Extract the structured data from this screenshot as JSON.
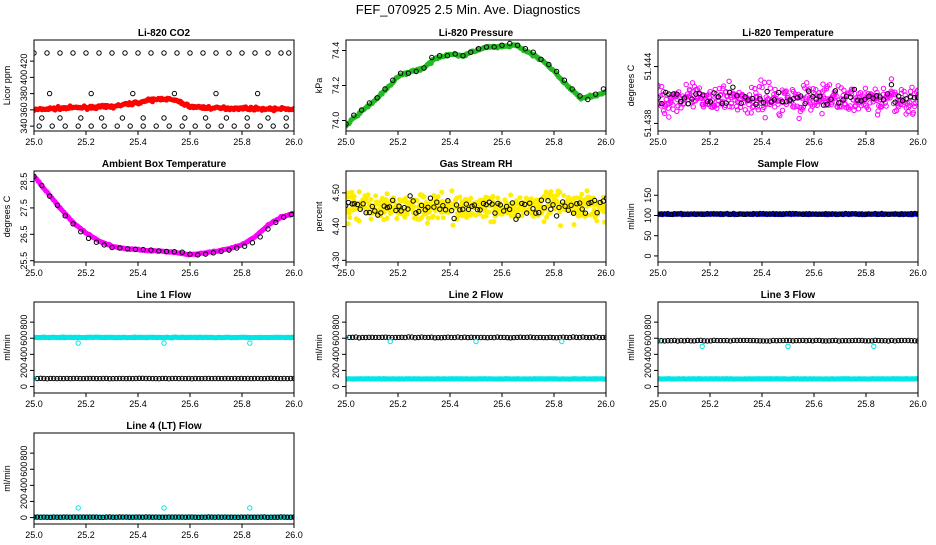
{
  "page_title": "FEF_070925  2.5 Min. Ave. Diagnostics",
  "chart_data": [
    {
      "id": "co2",
      "type": "scatter",
      "title": "Li-820 CO2",
      "ylabel": "Licor ppm",
      "xlim": [
        25.0,
        26.0
      ],
      "xticks": [
        25.0,
        25.2,
        25.4,
        25.6,
        25.8,
        26.0
      ],
      "xtick_labels": [
        "25.0",
        "25.2",
        "25.4",
        "25.6",
        "25.8",
        "26.0"
      ],
      "ylim": [
        334,
        446
      ],
      "yticks": [
        340,
        360,
        380,
        400,
        420
      ],
      "ytick_labels": [
        "340",
        "360",
        "380",
        "400",
        "420"
      ],
      "series": [
        {
          "name": "main",
          "color": "#ff0000",
          "marker": "filled",
          "style": "noisy",
          "x": [
            25.0,
            25.1,
            25.2,
            25.3,
            25.4,
            25.45,
            25.5,
            25.55,
            25.6,
            25.7,
            25.8,
            25.9,
            26.0
          ],
          "y": [
            360,
            362,
            363,
            364,
            369,
            372,
            374,
            371,
            364,
            362,
            362,
            361,
            361
          ],
          "noise": 3
        },
        {
          "name": "avg",
          "color": "#000000",
          "marker": "open",
          "style": "points",
          "x": [
            25.02,
            25.07,
            25.12,
            25.17,
            25.22,
            25.27,
            25.32,
            25.37,
            25.42,
            25.47,
            25.52,
            25.57,
            25.62,
            25.67,
            25.72,
            25.77,
            25.82,
            25.87,
            25.92,
            25.97,
            25.0,
            25.05,
            25.1,
            25.15,
            25.2,
            25.25,
            25.3,
            25.35,
            25.4,
            25.45,
            25.5,
            25.55,
            25.6,
            25.65,
            25.7,
            25.75,
            25.8,
            25.85,
            25.9,
            25.95,
            25.98,
            25.03,
            25.1,
            25.18,
            25.26,
            25.34,
            25.42,
            25.5,
            25.58,
            25.66,
            25.74,
            25.82,
            25.9,
            25.97,
            25.06,
            25.22,
            25.38,
            25.54,
            25.7,
            25.86
          ],
          "y": [
            340,
            340,
            340,
            340,
            340,
            340,
            340,
            340,
            340,
            340,
            340,
            340,
            340,
            340,
            340,
            340,
            340,
            340,
            340,
            340,
            430,
            430,
            430,
            430,
            430,
            430,
            430,
            430,
            430,
            430,
            430,
            430,
            430,
            430,
            430,
            430,
            430,
            430,
            430,
            430,
            430,
            350,
            350,
            350,
            350,
            350,
            350,
            350,
            350,
            350,
            350,
            350,
            350,
            350,
            380,
            380,
            380,
            380,
            380,
            380
          ]
        }
      ]
    },
    {
      "id": "press",
      "type": "scatter",
      "title": "Li-820 Pressure",
      "ylabel": "kPa",
      "xlim": [
        25.0,
        26.0
      ],
      "xticks": [
        25.0,
        25.2,
        25.4,
        25.6,
        25.8,
        26.0
      ],
      "xtick_labels": [
        "25.0",
        "25.2",
        "25.4",
        "25.6",
        "25.8",
        "26.0"
      ],
      "ylim": [
        73.94,
        74.46
      ],
      "yticks": [
        74.0,
        74.2,
        74.4
      ],
      "ytick_labels": [
        "74.0",
        "74.2",
        "74.4"
      ],
      "series": [
        {
          "name": "main",
          "color": "#22bb22",
          "marker": "filled",
          "style": "noisy",
          "x": [
            25.0,
            25.05,
            25.1,
            25.15,
            25.2,
            25.25,
            25.3,
            25.35,
            25.4,
            25.45,
            25.5,
            25.55,
            25.6,
            25.65,
            25.7,
            25.75,
            25.8,
            25.85,
            25.9,
            25.95,
            26.0
          ],
          "y": [
            73.97,
            74.04,
            74.1,
            74.17,
            74.25,
            74.28,
            74.3,
            74.36,
            74.38,
            74.37,
            74.4,
            74.42,
            74.42,
            74.43,
            74.39,
            74.35,
            74.28,
            74.2,
            74.13,
            74.14,
            74.16
          ],
          "noise": 0.012
        },
        {
          "name": "avg",
          "color": "#000000",
          "marker": "open",
          "style": "points",
          "x": [
            25.0,
            25.03,
            25.06,
            25.09,
            25.12,
            25.15,
            25.18,
            25.21,
            25.24,
            25.27,
            25.3,
            25.33,
            25.36,
            25.39,
            25.42,
            25.45,
            25.48,
            25.51,
            25.54,
            25.57,
            25.6,
            25.63,
            25.66,
            25.69,
            25.72,
            25.75,
            25.78,
            25.81,
            25.84,
            25.87,
            25.9,
            25.93,
            25.96,
            25.99
          ],
          "y": [
            73.98,
            74.03,
            74.06,
            74.1,
            74.13,
            74.18,
            74.23,
            74.27,
            74.27,
            74.28,
            74.3,
            74.36,
            74.37,
            74.37,
            74.38,
            74.37,
            74.39,
            74.41,
            74.42,
            74.42,
            74.43,
            74.44,
            74.43,
            74.41,
            74.39,
            74.35,
            74.32,
            74.28,
            74.23,
            74.18,
            74.14,
            74.12,
            74.15,
            74.18
          ]
        }
      ]
    },
    {
      "id": "ltemp",
      "type": "scatter",
      "title": "Li-820 Temperature",
      "ylabel": "degrees C",
      "xlim": [
        25.0,
        26.0
      ],
      "xticks": [
        25.0,
        25.2,
        25.4,
        25.6,
        25.8,
        26.0
      ],
      "xtick_labels": [
        "25.0",
        "25.2",
        "25.4",
        "25.6",
        "25.8",
        "26.0"
      ],
      "ylim": [
        51.4372,
        51.4468
      ],
      "yticks": [
        51.438,
        51.444
      ],
      "ytick_labels": [
        "51.438",
        "51.444"
      ],
      "series": [
        {
          "name": "main",
          "color": "#ff00ff",
          "marker": "open",
          "style": "scatter",
          "count": 420,
          "center": 51.4406,
          "spread": 0.0026,
          "ymin": 51.4374,
          "ymax": 51.4465
        },
        {
          "name": "avg",
          "color": "#000000",
          "marker": "open",
          "style": "scatter",
          "count": 70,
          "center": 51.4406,
          "spread": 0.0016,
          "ymin": 51.4376,
          "ymax": 51.4445
        }
      ]
    },
    {
      "id": "abox",
      "type": "scatter",
      "title": "Ambient Box Temperature",
      "ylabel": "degrees C",
      "xlim": [
        25.0,
        26.0
      ],
      "xticks": [
        25.0,
        25.2,
        25.4,
        25.6,
        25.8,
        26.0
      ],
      "xtick_labels": [
        "25.0",
        "25.2",
        "25.4",
        "25.6",
        "25.8",
        "26.0"
      ],
      "ylim": [
        25.45,
        28.9
      ],
      "yticks": [
        25.5,
        26.5,
        27.5,
        28.5
      ],
      "ytick_labels": [
        "25.5",
        "26.5",
        "27.5",
        "28.5"
      ],
      "series": [
        {
          "name": "main",
          "color": "#ff00ff",
          "marker": "filled",
          "style": "noisy",
          "x": [
            25.0,
            25.05,
            25.1,
            25.15,
            25.2,
            25.25,
            25.3,
            25.35,
            25.4,
            25.45,
            25.5,
            25.55,
            25.6,
            25.65,
            25.7,
            25.75,
            25.8,
            25.85,
            25.9,
            25.95,
            26.0
          ],
          "y": [
            28.7,
            28.1,
            27.5,
            26.95,
            26.55,
            26.25,
            26.05,
            25.95,
            25.92,
            25.88,
            25.85,
            25.8,
            25.72,
            25.78,
            25.85,
            25.95,
            26.1,
            26.4,
            26.85,
            27.15,
            27.3
          ],
          "noise": 0.04
        },
        {
          "name": "avg",
          "color": "#000000",
          "marker": "open",
          "style": "points",
          "x": [
            25.0,
            25.03,
            25.06,
            25.09,
            25.12,
            25.15,
            25.18,
            25.21,
            25.24,
            25.27,
            25.3,
            25.33,
            25.36,
            25.39,
            25.42,
            25.45,
            25.48,
            25.51,
            25.54,
            25.57,
            25.6,
            25.63,
            25.66,
            25.69,
            25.72,
            25.75,
            25.78,
            25.81,
            25.84,
            25.87,
            25.9,
            25.93,
            25.96,
            25.99
          ],
          "y": [
            28.7,
            28.35,
            27.95,
            27.6,
            27.2,
            26.9,
            26.6,
            26.35,
            26.2,
            26.1,
            26.0,
            25.98,
            25.95,
            25.93,
            25.92,
            25.9,
            25.87,
            25.85,
            25.84,
            25.82,
            25.75,
            25.72,
            25.75,
            25.8,
            25.85,
            25.9,
            25.98,
            26.05,
            26.18,
            26.4,
            26.7,
            26.95,
            27.15,
            27.25
          ]
        }
      ]
    },
    {
      "id": "rh",
      "type": "scatter",
      "title": "Gas Stream RH",
      "ylabel": "percent",
      "xlim": [
        25.0,
        26.0
      ],
      "xticks": [
        25.0,
        25.2,
        25.4,
        25.6,
        25.8,
        26.0
      ],
      "xtick_labels": [
        "25.0",
        "25.2",
        "25.4",
        "25.6",
        "25.8",
        "26.0"
      ],
      "ylim": [
        4.295,
        4.565
      ],
      "yticks": [
        4.3,
        4.4,
        4.5
      ],
      "ytick_labels": [
        "4.30",
        "4.40",
        "4.50"
      ],
      "series": [
        {
          "name": "main",
          "color": "#ffee00",
          "marker": "filled",
          "style": "scatter",
          "count": 480,
          "center": 4.46,
          "spread": 0.07,
          "ymin": 4.36,
          "ymax": 4.56
        },
        {
          "name": "avg",
          "color": "#000000",
          "marker": "open",
          "style": "scatter",
          "count": 90,
          "center": 4.46,
          "spread": 0.05,
          "ymin": 4.33,
          "ymax": 4.54
        }
      ]
    },
    {
      "id": "sflow",
      "type": "scatter",
      "title": "Sample Flow",
      "ylabel": "ml/min",
      "xlim": [
        25.0,
        26.0
      ],
      "xticks": [
        25.0,
        25.2,
        25.4,
        25.6,
        25.8,
        26.0
      ],
      "xtick_labels": [
        "25.0",
        "25.2",
        "25.4",
        "25.6",
        "25.8",
        "26.0"
      ],
      "ylim": [
        -15,
        210
      ],
      "yticks": [
        0,
        50,
        100,
        150
      ],
      "ytick_labels": [
        "0",
        "50",
        "100",
        "150"
      ],
      "series": [
        {
          "name": "main",
          "color": "#0000cc",
          "marker": "filled",
          "style": "flat",
          "level": 103,
          "noise": 2,
          "count": 300
        },
        {
          "name": "avg",
          "color": "#000000",
          "marker": "open",
          "style": "flat",
          "level": 104,
          "noise": 2,
          "count": 80
        }
      ]
    },
    {
      "id": "line1",
      "type": "scatter",
      "title": "Line 1 Flow",
      "ylabel": "ml/min",
      "xlim": [
        25.0,
        26.0
      ],
      "xticks": [
        25.0,
        25.2,
        25.4,
        25.6,
        25.8,
        26.0
      ],
      "xtick_labels": [
        "25.0",
        "25.2",
        "25.4",
        "25.6",
        "25.8",
        "26.0"
      ],
      "ylim": [
        -80,
        1050
      ],
      "yticks": [
        0,
        200,
        400,
        600,
        800
      ],
      "ytick_labels": [
        "0",
        "200",
        "400",
        "600",
        "800"
      ],
      "series": [
        {
          "name": "main",
          "color": "#00e5e5",
          "marker": "filled",
          "style": "flat",
          "level": 610,
          "noise": 8,
          "count": 300
        },
        {
          "name": "avg",
          "color": "#000000",
          "marker": "open",
          "style": "flat",
          "level": 100,
          "noise": 4,
          "count": 80
        },
        {
          "name": "low",
          "color": "#00e5e5",
          "marker": "open",
          "style": "points",
          "x": [
            25.0,
            25.17,
            25.5,
            25.83
          ],
          "y": [
            100,
            540,
            540,
            540
          ]
        }
      ]
    },
    {
      "id": "line2",
      "type": "scatter",
      "title": "Line 2 Flow",
      "ylabel": "ml/min",
      "xlim": [
        25.0,
        26.0
      ],
      "xticks": [
        25.0,
        25.2,
        25.4,
        25.6,
        25.8,
        26.0
      ],
      "xtick_labels": [
        "25.0",
        "25.2",
        "25.4",
        "25.6",
        "25.8",
        "26.0"
      ],
      "ylim": [
        -80,
        1050
      ],
      "yticks": [
        0,
        200,
        400,
        600,
        800
      ],
      "ytick_labels": [
        "0",
        "200",
        "400",
        "600",
        "800"
      ],
      "series": [
        {
          "name": "main",
          "color": "#00e5e5",
          "marker": "filled",
          "style": "flat",
          "level": 95,
          "noise": 5,
          "count": 300
        },
        {
          "name": "avg",
          "color": "#000000",
          "marker": "open",
          "style": "flat",
          "level": 610,
          "noise": 8,
          "count": 80
        },
        {
          "name": "low",
          "color": "#00e5e5",
          "marker": "open",
          "style": "points",
          "x": [
            25.0,
            25.17,
            25.5,
            25.83
          ],
          "y": [
            610,
            560,
            560,
            560
          ]
        }
      ]
    },
    {
      "id": "line3",
      "type": "scatter",
      "title": "Line 3 Flow",
      "ylabel": "ml/min",
      "xlim": [
        25.0,
        26.0
      ],
      "xticks": [
        25.0,
        25.2,
        25.4,
        25.6,
        25.8,
        26.0
      ],
      "xtick_labels": [
        "25.0",
        "25.2",
        "25.4",
        "25.6",
        "25.8",
        "26.0"
      ],
      "ylim": [
        -80,
        1050
      ],
      "yticks": [
        0,
        200,
        400,
        600,
        800
      ],
      "ytick_labels": [
        "0",
        "200",
        "400",
        "600",
        "800"
      ],
      "series": [
        {
          "name": "main",
          "color": "#00e5e5",
          "marker": "filled",
          "style": "flat",
          "level": 95,
          "noise": 5,
          "count": 300
        },
        {
          "name": "avg",
          "color": "#000000",
          "marker": "open",
          "style": "flat",
          "level": 570,
          "noise": 8,
          "count": 80
        },
        {
          "name": "low",
          "color": "#00e5e5",
          "marker": "open",
          "style": "points",
          "x": [
            25.0,
            25.17,
            25.5,
            25.83
          ],
          "y": [
            560,
            500,
            500,
            500
          ]
        }
      ]
    },
    {
      "id": "line4",
      "type": "scatter",
      "title": "Line 4 (LT) Flow",
      "ylabel": "ml/min",
      "xlim": [
        25.0,
        26.0
      ],
      "xticks": [
        25.0,
        25.2,
        25.4,
        25.6,
        25.8,
        26.0
      ],
      "xtick_labels": [
        "25.0",
        "25.2",
        "25.4",
        "25.6",
        "25.8",
        "26.0"
      ],
      "ylim": [
        -80,
        1050
      ],
      "yticks": [
        0,
        200,
        400,
        600,
        800
      ],
      "ytick_labels": [
        "0",
        "200",
        "400",
        "600",
        "800"
      ],
      "series": [
        {
          "name": "main",
          "color": "#00e5e5",
          "marker": "filled",
          "style": "flat",
          "level": 5,
          "noise": 3,
          "count": 300
        },
        {
          "name": "avg",
          "color": "#000000",
          "marker": "open",
          "style": "flat",
          "level": 5,
          "noise": 3,
          "count": 80
        },
        {
          "name": "low",
          "color": "#00e5e5",
          "marker": "open",
          "style": "points",
          "x": [
            25.17,
            25.5,
            25.83
          ],
          "y": [
            120,
            120,
            120
          ]
        }
      ]
    }
  ]
}
